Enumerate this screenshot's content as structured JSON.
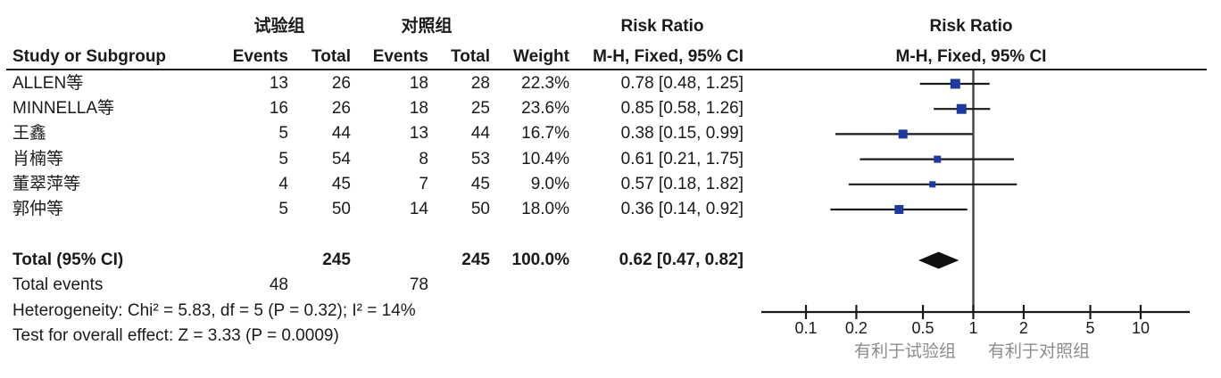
{
  "colors": {
    "marker_blue": "#1c3aa0",
    "diamond_black": "#111111",
    "line_dark": "#1a1a1a",
    "null_line_gray": "#4a4a4a",
    "footer_gray": "#8c8c8c"
  },
  "header": {
    "experimental_group": "试验组",
    "control_group": "对照组",
    "study_col": "Study or Subgroup",
    "events_col": "Events",
    "total_col": "Total",
    "weight_col": "Weight",
    "risk_ratio": "Risk Ratio",
    "method_ci": "M-H, Fixed, 95% CI"
  },
  "chart_data": {
    "type": "forest",
    "effect_measure": "Risk Ratio",
    "method": "M-H, Fixed, 95% CI",
    "x_scale": "log",
    "x_range": [
      0.1,
      10
    ],
    "studies": [
      {
        "name": "ALLEN等",
        "exp_events": 13,
        "exp_total": 26,
        "ctrl_events": 18,
        "ctrl_total": 28,
        "weight": "22.3%",
        "weight_pct": 22.3,
        "rr": 0.78,
        "ci_low": 0.48,
        "ci_high": 1.25,
        "ci_label": "0.78 [0.48, 1.25]"
      },
      {
        "name": "MINNELLA等",
        "exp_events": 16,
        "exp_total": 26,
        "ctrl_events": 18,
        "ctrl_total": 25,
        "weight": "23.6%",
        "weight_pct": 23.6,
        "rr": 0.85,
        "ci_low": 0.58,
        "ci_high": 1.26,
        "ci_label": "0.85 [0.58, 1.26]"
      },
      {
        "name": "王鑫",
        "exp_events": 5,
        "exp_total": 44,
        "ctrl_events": 13,
        "ctrl_total": 44,
        "weight": "16.7%",
        "weight_pct": 16.7,
        "rr": 0.38,
        "ci_low": 0.15,
        "ci_high": 0.99,
        "ci_label": "0.38 [0.15, 0.99]"
      },
      {
        "name": "肖楠等",
        "exp_events": 5,
        "exp_total": 54,
        "ctrl_events": 8,
        "ctrl_total": 53,
        "weight": "10.4%",
        "weight_pct": 10.4,
        "rr": 0.61,
        "ci_low": 0.21,
        "ci_high": 1.75,
        "ci_label": "0.61 [0.21, 1.75]"
      },
      {
        "name": "董翠萍等",
        "exp_events": 4,
        "exp_total": 45,
        "ctrl_events": 7,
        "ctrl_total": 45,
        "weight": "9.0%",
        "weight_pct": 9.0,
        "rr": 0.57,
        "ci_low": 0.18,
        "ci_high": 1.82,
        "ci_label": "0.57 [0.18, 1.82]"
      },
      {
        "name": "郭仲等",
        "exp_events": 5,
        "exp_total": 50,
        "ctrl_events": 14,
        "ctrl_total": 50,
        "weight": "18.0%",
        "weight_pct": 18.0,
        "rr": 0.36,
        "ci_low": 0.14,
        "ci_high": 0.92,
        "ci_label": "0.36 [0.14, 0.92]"
      }
    ],
    "total": {
      "label": "Total (95% CI)",
      "exp_total": 245,
      "ctrl_total": 245,
      "weight": "100.0%",
      "rr": 0.62,
      "ci_low": 0.47,
      "ci_high": 0.82,
      "ci_label": "0.62 [0.47, 0.82]"
    },
    "total_events": {
      "label": "Total events",
      "experimental": 48,
      "control": 78
    },
    "heterogeneity": "Heterogeneity: Chi² = 5.83, df = 5 (P = 0.32); I² = 14%",
    "overall_effect": "Test for overall effect: Z = 3.33 (P = 0.0009)",
    "axis": {
      "ticks": [
        "0.1",
        "0.2",
        "0.5",
        "1",
        "2",
        "5",
        "10"
      ],
      "tick_values": [
        0.1,
        0.2,
        0.5,
        1,
        2,
        5,
        10
      ],
      "favours_left": "有利于试验组",
      "favours_right": "有利于对照组"
    }
  }
}
